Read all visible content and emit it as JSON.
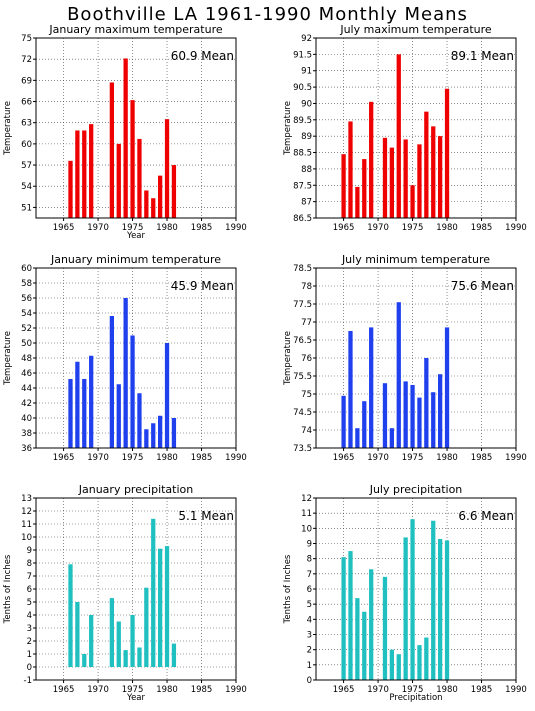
{
  "page": {
    "title": "Boothville LA  1961-1990 Monthly Means"
  },
  "chart_data": [
    {
      "type": "bar",
      "title": "January maximum temperature",
      "ylabel": "Temperature",
      "xlabel": "Year",
      "mean_label": "60.9  Mean",
      "color": "#ee0000",
      "xlim": [
        1961,
        1990
      ],
      "ylim": [
        49.5,
        75
      ],
      "yticks": [
        51,
        54,
        57,
        60,
        63,
        66,
        69,
        72,
        75
      ],
      "xticks": [
        1965,
        1970,
        1975,
        1980,
        1985,
        1990
      ],
      "x": [
        1966,
        1967,
        1968,
        1969,
        1972,
        1973,
        1974,
        1975,
        1976,
        1977,
        1978,
        1979,
        1980,
        1981
      ],
      "values": [
        57.6,
        61.9,
        61.9,
        62.8,
        68.7,
        60.0,
        72.1,
        66.2,
        60.7,
        53.4,
        52.3,
        55.5,
        63.5,
        57.0
      ]
    },
    {
      "type": "bar",
      "title": "July maximum temperature",
      "ylabel": "Temperature",
      "xlabel": "",
      "mean_label": "89.1  Mean",
      "color": "#ee0000",
      "xlim": [
        1961,
        1990
      ],
      "ylim": [
        86.5,
        92
      ],
      "yticks": [
        86.5,
        87,
        87.5,
        88,
        88.5,
        89,
        89.5,
        90,
        90.5,
        91,
        91.5,
        92
      ],
      "xticks": [
        1965,
        1970,
        1975,
        1980,
        1985,
        1990
      ],
      "x": [
        1965,
        1966,
        1967,
        1968,
        1969,
        1971,
        1972,
        1973,
        1974,
        1975,
        1976,
        1977,
        1978,
        1979,
        1980
      ],
      "values": [
        88.45,
        89.45,
        87.45,
        88.3,
        90.05,
        88.95,
        88.65,
        91.5,
        88.9,
        87.5,
        88.75,
        89.75,
        89.3,
        89.0,
        90.45
      ]
    },
    {
      "type": "bar",
      "title": "January minimum temperature",
      "ylabel": "Temperature",
      "xlabel": "",
      "mean_label": "45.9  Mean",
      "color": "#2040ee",
      "xlim": [
        1961,
        1990
      ],
      "ylim": [
        36,
        60
      ],
      "yticks": [
        36,
        38,
        40,
        42,
        44,
        46,
        48,
        50,
        52,
        54,
        56,
        58,
        60
      ],
      "xticks": [
        1965,
        1970,
        1975,
        1980,
        1985,
        1990
      ],
      "x": [
        1966,
        1967,
        1968,
        1969,
        1972,
        1973,
        1974,
        1975,
        1976,
        1977,
        1978,
        1979,
        1980,
        1981
      ],
      "values": [
        45.2,
        47.5,
        45.2,
        48.3,
        53.6,
        44.5,
        56.0,
        51.0,
        43.3,
        38.5,
        39.3,
        40.3,
        50.0,
        40.0
      ]
    },
    {
      "type": "bar",
      "title": "July minimum temperature",
      "ylabel": "Temperature",
      "xlabel": "",
      "mean_label": "75.6  Mean",
      "color": "#2040ee",
      "xlim": [
        1961,
        1990
      ],
      "ylim": [
        73.5,
        78.5
      ],
      "yticks": [
        73.5,
        74,
        74.5,
        75,
        75.5,
        76,
        76.5,
        77,
        77.5,
        78,
        78.5
      ],
      "xticks": [
        1965,
        1970,
        1975,
        1980,
        1985,
        1990
      ],
      "x": [
        1965,
        1966,
        1967,
        1968,
        1969,
        1971,
        1972,
        1973,
        1974,
        1975,
        1976,
        1977,
        1978,
        1979,
        1980
      ],
      "values": [
        74.95,
        76.75,
        74.05,
        74.8,
        76.85,
        75.3,
        74.05,
        77.55,
        75.35,
        75.25,
        74.9,
        76.0,
        75.05,
        75.55,
        76.85
      ]
    },
    {
      "type": "bar",
      "title": "January precipitation",
      "ylabel": "Tenths of Inches",
      "xlabel": "Year",
      "mean_label": "5.1  Mean",
      "color": "#20c0c0",
      "xlim": [
        1961,
        1990
      ],
      "ylim": [
        -1,
        13
      ],
      "yticks": [
        -1,
        0,
        1,
        2,
        3,
        4,
        5,
        6,
        7,
        8,
        9,
        10,
        11,
        12,
        13
      ],
      "xticks": [
        1965,
        1970,
        1975,
        1980,
        1985,
        1990
      ],
      "x": [
        1966,
        1967,
        1968,
        1969,
        1972,
        1973,
        1974,
        1975,
        1976,
        1977,
        1978,
        1979,
        1980,
        1981
      ],
      "values": [
        7.9,
        5.0,
        1.0,
        4.0,
        5.3,
        3.5,
        1.3,
        4.0,
        1.5,
        6.1,
        11.4,
        9.1,
        9.3,
        1.8
      ]
    },
    {
      "type": "bar",
      "title": "July precipitation",
      "ylabel": "Tenths of Inches",
      "xlabel": "Precipitation",
      "mean_label": "6.6  Mean",
      "color": "#20c0c0",
      "xlim": [
        1961,
        1990
      ],
      "ylim": [
        0,
        12
      ],
      "yticks": [
        0,
        1,
        2,
        3,
        4,
        5,
        6,
        7,
        8,
        9,
        10,
        11,
        12
      ],
      "xticks": [
        1965,
        1970,
        1975,
        1980,
        1985,
        1990
      ],
      "x": [
        1965,
        1966,
        1967,
        1968,
        1969,
        1971,
        1972,
        1973,
        1974,
        1975,
        1976,
        1977,
        1978,
        1979,
        1980
      ],
      "values": [
        8.1,
        8.5,
        5.4,
        4.5,
        7.3,
        6.8,
        2.0,
        1.7,
        9.4,
        10.6,
        2.3,
        2.8,
        10.5,
        9.3,
        9.2
      ]
    }
  ]
}
